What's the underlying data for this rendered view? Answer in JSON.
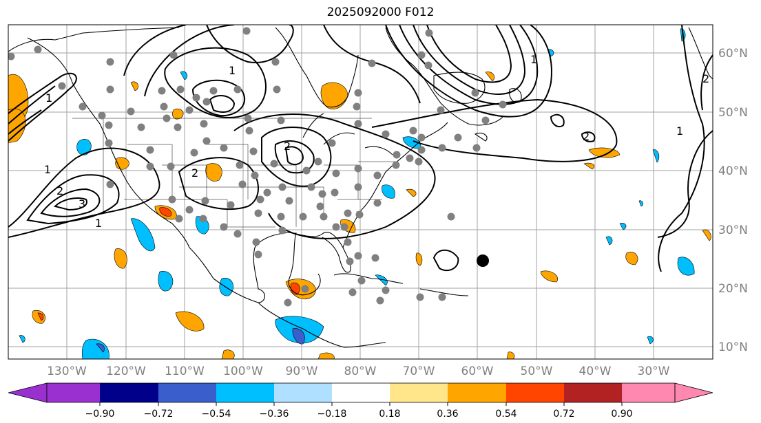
{
  "title": "2025092000 F012",
  "map": {
    "longitude_labels": [
      "130°W",
      "120°W",
      "110°W",
      "100°W",
      "90°W",
      "80°W",
      "70°W",
      "60°W",
      "50°W",
      "40°W",
      "30°W"
    ],
    "latitude_labels": [
      "60°N",
      "50°N",
      "40°N",
      "30°N",
      "20°N",
      "10°N"
    ],
    "contour_labels": [
      "1",
      "1",
      "2",
      "3",
      "1",
      "2",
      "1",
      "1",
      "2",
      "2",
      "1",
      "2"
    ],
    "colors": {
      "coast": "#000000",
      "grid": "#a0a0a0",
      "obs_marker": "#808080",
      "center_marker": "#000000"
    }
  },
  "colorbar": {
    "tick_labels": [
      "−0.90",
      "−0.72",
      "−0.54",
      "−0.36",
      "−0.18",
      "0.18",
      "0.36",
      "0.54",
      "0.72",
      "0.90"
    ],
    "colors": [
      "#9b30d0",
      "#00008b",
      "#3a5fcd",
      "#00bfff",
      "#b0e0ff",
      "#ffffff",
      "#ffe68a",
      "#ffa500",
      "#ff4500",
      "#b22222",
      "#ff88b0"
    ]
  }
}
